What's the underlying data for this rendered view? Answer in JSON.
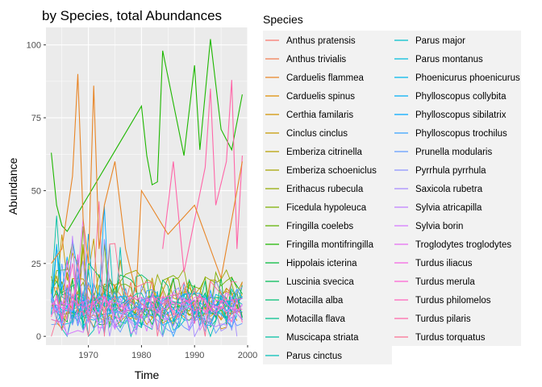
{
  "chart_data": {
    "type": "line",
    "title": "by Species, total Abundances",
    "xlabel": "Time",
    "ylabel": "Abundance",
    "xlim": [
      1962,
      2000
    ],
    "ylim": [
      -3,
      106
    ],
    "x_ticks": [
      1970,
      1980,
      1990,
      2000
    ],
    "y_ticks": [
      0,
      25,
      50,
      75,
      100
    ],
    "grid": true,
    "panel_background": "#ebebeb",
    "legend": {
      "title": "Species",
      "placement": "right",
      "columns": 2
    },
    "series": [
      {
        "name": "Anthus pratensis",
        "color": "#F8766D"
      },
      {
        "name": "Anthus trivialis",
        "color": "#F17D50"
      },
      {
        "name": "Carduelis flammea",
        "color": "#E88526"
      },
      {
        "name": "Carduelis spinus",
        "color": "#DE8C00"
      },
      {
        "name": "Certhia familaris",
        "color": "#D39200"
      },
      {
        "name": "Cinclus cinclus",
        "color": "#C59900"
      },
      {
        "name": "Emberiza citrinella",
        "color": "#B79F00"
      },
      {
        "name": "Emberiza schoeniclus",
        "color": "#A6A400"
      },
      {
        "name": "Erithacus rubecula",
        "color": "#93AA00"
      },
      {
        "name": "Ficedula hypoleuca",
        "color": "#7CAE00"
      },
      {
        "name": "Fringilla coelebs",
        "color": "#5EB300"
      },
      {
        "name": "Fringilla montifringilla",
        "color": "#1EB700"
      },
      {
        "name": "Hippolais icterina",
        "color": "#00BA38"
      },
      {
        "name": "Luscinia svecica",
        "color": "#00BC56"
      },
      {
        "name": "Motacilla alba",
        "color": "#00BF74"
      },
      {
        "name": "Motacilla flava",
        "color": "#00C08B"
      },
      {
        "name": "Muscicapa striata",
        "color": "#00C0A3"
      },
      {
        "name": "Parus cinctus",
        "color": "#00BFB7"
      },
      {
        "name": "Parus major",
        "color": "#00BECA"
      },
      {
        "name": "Parus montanus",
        "color": "#00BBDB"
      },
      {
        "name": "Phoenicurus phoenicurus",
        "color": "#00B6EB"
      },
      {
        "name": "Phylloscopus collybita",
        "color": "#00B0F6"
      },
      {
        "name": "Phylloscopus sibilatrix",
        "color": "#00A9FF"
      },
      {
        "name": "Phylloscopus trochilus",
        "color": "#35A2FF"
      },
      {
        "name": "Prunella modularis",
        "color": "#619CFF"
      },
      {
        "name": "Pyrrhula pyrrhula",
        "color": "#8B93FF"
      },
      {
        "name": "Saxicola rubetra",
        "color": "#A58AFF"
      },
      {
        "name": "Sylvia atricapilla",
        "color": "#BE80FF"
      },
      {
        "name": "Sylvia borin",
        "color": "#D575FE"
      },
      {
        "name": "Troglodytes troglodytes",
        "color": "#E76BF3"
      },
      {
        "name": "Turdus iliacus",
        "color": "#F564E3"
      },
      {
        "name": "Turdus merula",
        "color": "#FD61D1"
      },
      {
        "name": "Turdus philomelos",
        "color": "#FF62BC"
      },
      {
        "name": "Turdus pilaris",
        "color": "#FF66A8"
      },
      {
        "name": "Turdus torquatus",
        "color": "#FB6F93"
      }
    ],
    "highlight_series": [
      {
        "name": "Fringilla montifringilla",
        "x": [
          1963,
          1964,
          1965,
          1966,
          1980,
          1981,
          1982,
          1983,
          1984,
          1986,
          1988,
          1990,
          1991,
          1993,
          1995,
          1997,
          1999
        ],
        "y": [
          63,
          45,
          38,
          36,
          79,
          62,
          52,
          53,
          98,
          80,
          62,
          93,
          64,
          102,
          71,
          64,
          83
        ]
      },
      {
        "name": "Turdus pilaris",
        "x": [
          1984,
          1986,
          1988,
          1990,
          1992,
          1993,
          1994,
          1996,
          1997,
          1998,
          1999
        ],
        "y": [
          30,
          60,
          22,
          40,
          58,
          85,
          45,
          60,
          88,
          30,
          62
        ]
      },
      {
        "name": "Carduelis flammea",
        "x": [
          1963,
          1965,
          1967,
          1968,
          1969,
          1970,
          1971,
          1972,
          1973,
          1975,
          1977,
          1979,
          1980,
          1985,
          1990,
          1995,
          1999
        ],
        "y": [
          25,
          30,
          55,
          90,
          40,
          25,
          86,
          30,
          45,
          60,
          30,
          15,
          50,
          35,
          45,
          20,
          60
        ]
      }
    ]
  }
}
